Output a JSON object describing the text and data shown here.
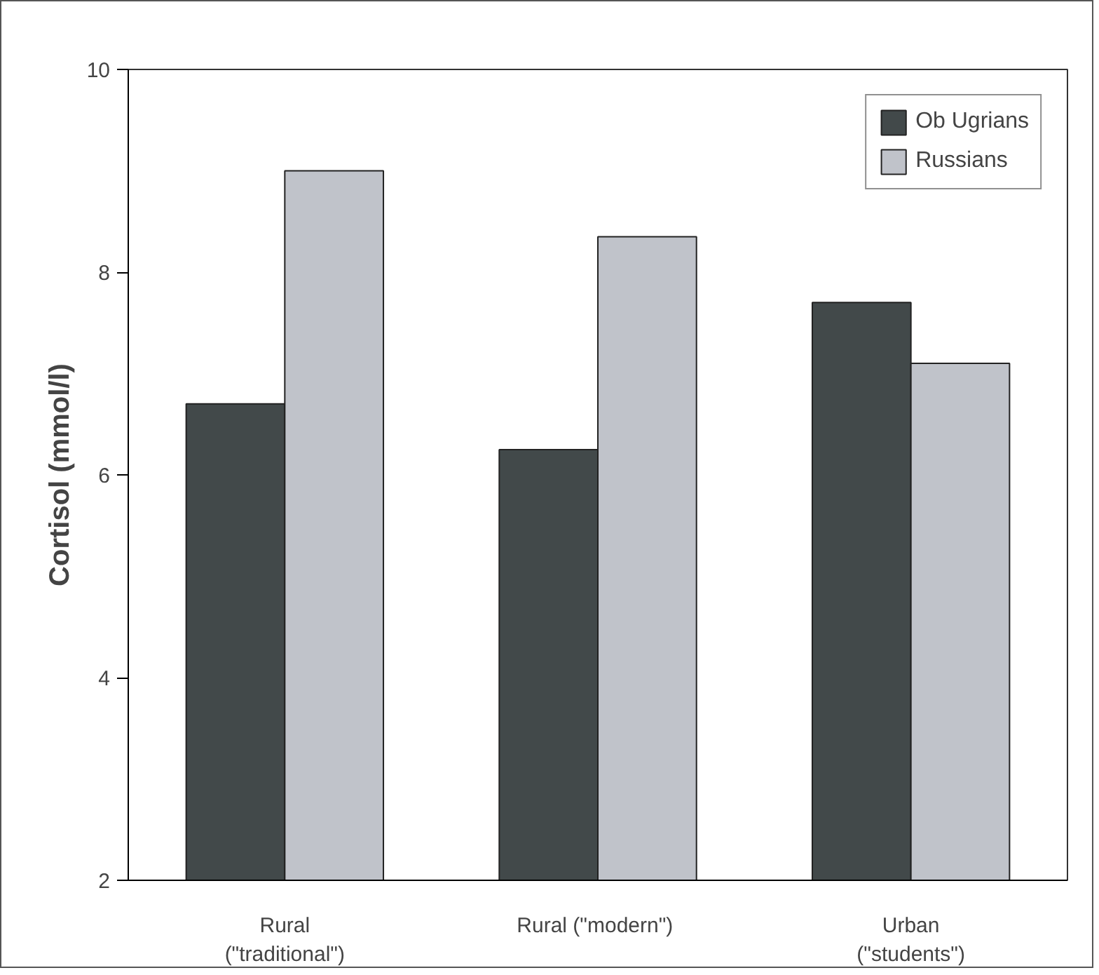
{
  "chart_data": {
    "type": "bar",
    "ylabel": "Cortisol (mmol/l)",
    "categories": [
      "Rural\n(\"traditional\")",
      "Rural  (\"modern\")",
      "Urban\n(\"students\")"
    ],
    "series": [
      {
        "name": "Ob Ugrians",
        "color": "#42494a",
        "values": [
          6.7,
          6.25,
          7.7
        ]
      },
      {
        "name": "Russians",
        "color": "#c0c3ca",
        "values": [
          9.0,
          8.35,
          7.1
        ]
      }
    ],
    "ylim": [
      2,
      10
    ],
    "yticks": [
      2,
      4,
      6,
      8,
      10
    ],
    "grid": false,
    "legend": "top right"
  }
}
